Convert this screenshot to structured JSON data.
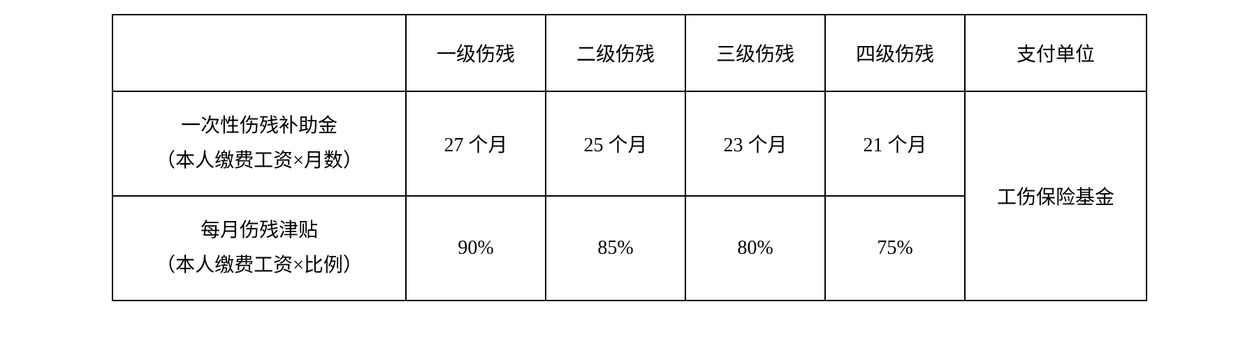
{
  "table": {
    "type": "table",
    "background_color": "#ffffff",
    "border_color": "#000000",
    "text_color": "#000000",
    "font_family": "SimSun",
    "header_fontsize": 28,
    "cell_fontsize": 28,
    "columns": {
      "blank": "",
      "level1": "一级伤残",
      "level2": "二级伤残",
      "level3": "三级伤残",
      "level4": "四级伤残",
      "payer": "支付单位"
    },
    "rows": {
      "row1": {
        "label_line1": "一次性伤残补助金",
        "label_line2": "（本人缴费工资×月数）",
        "level1": "27 个月",
        "level2": "25 个月",
        "level3": "23 个月",
        "level4": "21 个月"
      },
      "row2": {
        "label_line1": "每月伤残津贴",
        "label_line2": "（本人缴费工资×比例）",
        "level1": "90%",
        "level2": "85%",
        "level3": "80%",
        "level4": "75%"
      }
    },
    "merged_payer": "工伤保险基金",
    "column_widths": {
      "label": 420,
      "level": 200,
      "payer": 260
    },
    "row_heights": {
      "header": 110,
      "data": 150
    }
  }
}
